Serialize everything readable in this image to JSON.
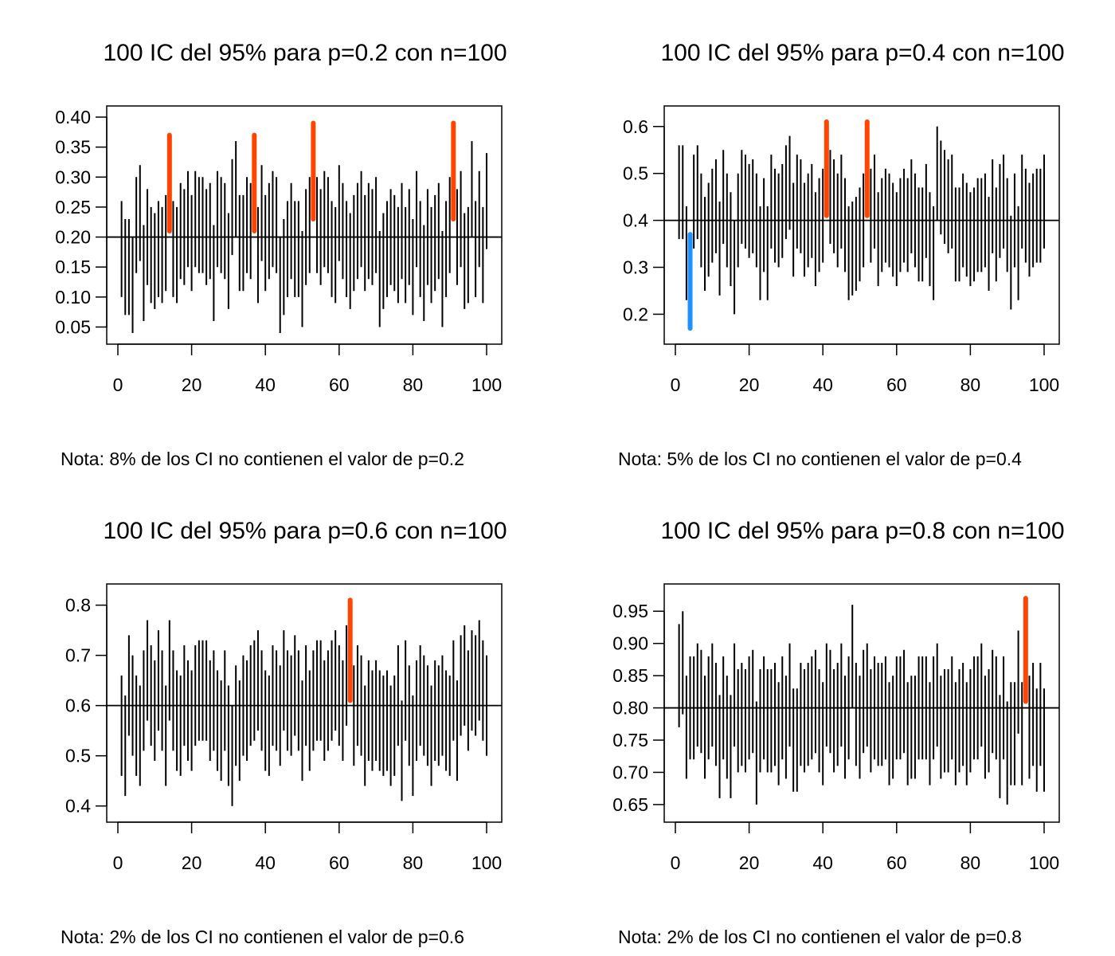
{
  "colors": {
    "interval": "#000000",
    "above": "#FF4500",
    "below": "#1E90FF",
    "reference_line": "#000000",
    "background": "#FFFFFF"
  },
  "chart_data": [
    {
      "type": "interval",
      "title": "100 IC del 95% para p=0.2 con n=100",
      "note": "Nota: 8% de los CI no contienen el valor de p=0.2",
      "p": 0.2,
      "xlim": [
        0,
        100
      ],
      "xticks": [
        0,
        20,
        40,
        60,
        80,
        100
      ],
      "ylim": [
        0.04,
        0.4
      ],
      "yticks": [
        0.05,
        0.1,
        0.15,
        0.2,
        0.25,
        0.3,
        0.35,
        0.4
      ],
      "ytick_labels": [
        "0.05",
        "0.10",
        "0.15",
        "0.20",
        "0.25",
        "0.30",
        "0.35",
        "0.40"
      ],
      "grid": false,
      "lower": [
        0.1,
        0.07,
        0.07,
        0.04,
        0.14,
        0.16,
        0.06,
        0.12,
        0.09,
        0.08,
        0.1,
        0.09,
        0.11,
        0.21,
        0.1,
        0.09,
        0.13,
        0.12,
        0.15,
        0.11,
        0.15,
        0.14,
        0.14,
        0.12,
        0.13,
        0.06,
        0.15,
        0.14,
        0.13,
        0.08,
        0.17,
        0.2,
        0.11,
        0.11,
        0.14,
        0.13,
        0.21,
        0.09,
        0.16,
        0.11,
        0.13,
        0.15,
        0.14,
        0.04,
        0.07,
        0.1,
        0.13,
        0.1,
        0.1,
        0.05,
        0.12,
        0.14,
        0.23,
        0.14,
        0.12,
        0.15,
        0.14,
        0.1,
        0.09,
        0.16,
        0.13,
        0.1,
        0.08,
        0.11,
        0.13,
        0.15,
        0.11,
        0.13,
        0.12,
        0.14,
        0.05,
        0.08,
        0.1,
        0.12,
        0.11,
        0.09,
        0.13,
        0.09,
        0.12,
        0.07,
        0.15,
        0.1,
        0.06,
        0.12,
        0.09,
        0.11,
        0.13,
        0.05,
        0.1,
        0.14,
        0.23,
        0.12,
        0.15,
        0.08,
        0.09,
        0.2,
        0.1,
        0.15,
        0.09,
        0.18
      ],
      "upper": [
        0.26,
        0.23,
        0.23,
        0.2,
        0.3,
        0.32,
        0.22,
        0.28,
        0.25,
        0.24,
        0.26,
        0.25,
        0.27,
        0.37,
        0.26,
        0.25,
        0.29,
        0.28,
        0.31,
        0.27,
        0.31,
        0.3,
        0.3,
        0.28,
        0.29,
        0.22,
        0.31,
        0.3,
        0.29,
        0.24,
        0.33,
        0.36,
        0.27,
        0.27,
        0.3,
        0.29,
        0.37,
        0.25,
        0.32,
        0.27,
        0.29,
        0.31,
        0.3,
        0.2,
        0.23,
        0.26,
        0.29,
        0.26,
        0.26,
        0.21,
        0.28,
        0.3,
        0.39,
        0.3,
        0.28,
        0.31,
        0.3,
        0.26,
        0.25,
        0.32,
        0.29,
        0.26,
        0.24,
        0.27,
        0.29,
        0.31,
        0.27,
        0.29,
        0.28,
        0.3,
        0.21,
        0.24,
        0.26,
        0.28,
        0.27,
        0.25,
        0.29,
        0.25,
        0.28,
        0.23,
        0.31,
        0.26,
        0.22,
        0.28,
        0.25,
        0.27,
        0.29,
        0.21,
        0.26,
        0.3,
        0.39,
        0.28,
        0.31,
        0.24,
        0.25,
        0.36,
        0.26,
        0.31,
        0.25,
        0.34
      ]
    },
    {
      "type": "interval",
      "title": "100 IC del 95% para p=0.4 con n=100",
      "note": "Nota: 5% de los CI no contienen el valor de p=0.4",
      "p": 0.4,
      "xlim": [
        0,
        100
      ],
      "xticks": [
        0,
        20,
        40,
        60,
        80,
        100
      ],
      "ylim": [
        0.16,
        0.62
      ],
      "yticks": [
        0.2,
        0.3,
        0.4,
        0.5,
        0.6
      ],
      "ytick_labels": [
        "0.2",
        "0.3",
        "0.4",
        "0.5",
        "0.6"
      ],
      "grid": false,
      "lower": [
        0.36,
        0.36,
        0.23,
        0.17,
        0.34,
        0.36,
        0.3,
        0.25,
        0.28,
        0.31,
        0.33,
        0.24,
        0.35,
        0.3,
        0.26,
        0.2,
        0.3,
        0.35,
        0.34,
        0.32,
        0.33,
        0.3,
        0.23,
        0.29,
        0.23,
        0.34,
        0.31,
        0.3,
        0.32,
        0.36,
        0.38,
        0.28,
        0.34,
        0.33,
        0.28,
        0.3,
        0.32,
        0.26,
        0.29,
        0.31,
        0.41,
        0.35,
        0.33,
        0.3,
        0.34,
        0.29,
        0.23,
        0.24,
        0.25,
        0.27,
        0.3,
        0.41,
        0.31,
        0.34,
        0.26,
        0.29,
        0.31,
        0.3,
        0.28,
        0.26,
        0.29,
        0.31,
        0.29,
        0.33,
        0.3,
        0.27,
        0.27,
        0.32,
        0.26,
        0.23,
        0.4,
        0.37,
        0.35,
        0.33,
        0.34,
        0.27,
        0.27,
        0.3,
        0.28,
        0.26,
        0.27,
        0.29,
        0.29,
        0.3,
        0.25,
        0.33,
        0.27,
        0.32,
        0.34,
        0.29,
        0.21,
        0.3,
        0.23,
        0.34,
        0.31,
        0.28,
        0.3,
        0.31,
        0.31,
        0.34
      ],
      "upper": [
        0.56,
        0.56,
        0.43,
        0.37,
        0.54,
        0.56,
        0.5,
        0.45,
        0.48,
        0.51,
        0.53,
        0.44,
        0.55,
        0.5,
        0.46,
        0.4,
        0.5,
        0.55,
        0.54,
        0.52,
        0.53,
        0.5,
        0.43,
        0.49,
        0.43,
        0.54,
        0.51,
        0.5,
        0.52,
        0.56,
        0.58,
        0.48,
        0.54,
        0.53,
        0.48,
        0.5,
        0.52,
        0.46,
        0.49,
        0.51,
        0.61,
        0.55,
        0.53,
        0.5,
        0.54,
        0.49,
        0.43,
        0.44,
        0.45,
        0.47,
        0.5,
        0.61,
        0.51,
        0.54,
        0.46,
        0.49,
        0.51,
        0.5,
        0.48,
        0.46,
        0.49,
        0.51,
        0.49,
        0.53,
        0.5,
        0.47,
        0.47,
        0.52,
        0.46,
        0.43,
        0.6,
        0.57,
        0.55,
        0.53,
        0.54,
        0.47,
        0.47,
        0.5,
        0.48,
        0.46,
        0.47,
        0.49,
        0.49,
        0.5,
        0.45,
        0.53,
        0.47,
        0.52,
        0.54,
        0.49,
        0.41,
        0.5,
        0.43,
        0.54,
        0.51,
        0.48,
        0.5,
        0.51,
        0.51,
        0.54
      ]
    },
    {
      "type": "interval",
      "title": "100 IC del 95% para p=0.6 con n=100",
      "note": "Nota: 2% de los CI no contienen el valor de p=0.6",
      "p": 0.6,
      "xlim": [
        0,
        100
      ],
      "xticks": [
        0,
        20,
        40,
        60,
        80,
        100
      ],
      "ylim": [
        0.39,
        0.82
      ],
      "yticks": [
        0.4,
        0.5,
        0.6,
        0.7,
        0.8
      ],
      "ytick_labels": [
        "0.4",
        "0.5",
        "0.6",
        "0.7",
        "0.8"
      ],
      "grid": false,
      "lower": [
        0.46,
        0.42,
        0.54,
        0.5,
        0.46,
        0.44,
        0.51,
        0.57,
        0.52,
        0.49,
        0.55,
        0.51,
        0.44,
        0.57,
        0.51,
        0.47,
        0.46,
        0.52,
        0.49,
        0.47,
        0.52,
        0.53,
        0.53,
        0.53,
        0.49,
        0.51,
        0.47,
        0.45,
        0.51,
        0.44,
        0.4,
        0.48,
        0.45,
        0.5,
        0.49,
        0.52,
        0.53,
        0.55,
        0.51,
        0.47,
        0.46,
        0.52,
        0.51,
        0.48,
        0.55,
        0.51,
        0.5,
        0.54,
        0.51,
        0.45,
        0.52,
        0.47,
        0.51,
        0.53,
        0.53,
        0.49,
        0.51,
        0.53,
        0.55,
        0.52,
        0.49,
        0.56,
        0.61,
        0.48,
        0.52,
        0.5,
        0.44,
        0.49,
        0.47,
        0.49,
        0.47,
        0.46,
        0.47,
        0.44,
        0.46,
        0.52,
        0.41,
        0.53,
        0.48,
        0.42,
        0.49,
        0.52,
        0.5,
        0.48,
        0.44,
        0.49,
        0.48,
        0.5,
        0.47,
        0.46,
        0.53,
        0.45,
        0.54,
        0.56,
        0.51,
        0.55,
        0.54,
        0.57,
        0.53,
        0.5
      ],
      "upper": [
        0.66,
        0.62,
        0.74,
        0.7,
        0.66,
        0.64,
        0.71,
        0.77,
        0.72,
        0.69,
        0.75,
        0.71,
        0.64,
        0.77,
        0.71,
        0.67,
        0.66,
        0.72,
        0.69,
        0.67,
        0.72,
        0.73,
        0.73,
        0.73,
        0.69,
        0.71,
        0.67,
        0.65,
        0.71,
        0.64,
        0.6,
        0.68,
        0.65,
        0.7,
        0.69,
        0.72,
        0.73,
        0.75,
        0.71,
        0.67,
        0.66,
        0.72,
        0.71,
        0.68,
        0.75,
        0.71,
        0.7,
        0.74,
        0.71,
        0.65,
        0.72,
        0.67,
        0.71,
        0.73,
        0.73,
        0.69,
        0.71,
        0.73,
        0.75,
        0.72,
        0.69,
        0.76,
        0.81,
        0.68,
        0.72,
        0.7,
        0.64,
        0.69,
        0.67,
        0.69,
        0.67,
        0.66,
        0.67,
        0.64,
        0.66,
        0.72,
        0.61,
        0.73,
        0.68,
        0.62,
        0.69,
        0.72,
        0.7,
        0.68,
        0.64,
        0.69,
        0.68,
        0.7,
        0.67,
        0.66,
        0.73,
        0.65,
        0.74,
        0.76,
        0.71,
        0.75,
        0.74,
        0.77,
        0.73,
        0.7
      ]
    },
    {
      "type": "interval",
      "title": "100 IC del 95% para p=0.8 con n=100",
      "note": "Nota: 2% de los CI no contienen el valor de p=0.8",
      "p": 0.8,
      "xlim": [
        0,
        100
      ],
      "xticks": [
        0,
        20,
        40,
        60,
        80,
        100
      ],
      "ylim": [
        0.64,
        0.975
      ],
      "yticks": [
        0.65,
        0.7,
        0.75,
        0.8,
        0.85,
        0.9,
        0.95
      ],
      "ytick_labels": [
        "0.65",
        "0.70",
        "0.75",
        "0.80",
        "0.85",
        "0.90",
        "0.95"
      ],
      "grid": false,
      "lower": [
        0.77,
        0.79,
        0.69,
        0.72,
        0.72,
        0.74,
        0.73,
        0.69,
        0.72,
        0.74,
        0.71,
        0.66,
        0.72,
        0.69,
        0.66,
        0.74,
        0.7,
        0.71,
        0.7,
        0.72,
        0.73,
        0.65,
        0.7,
        0.72,
        0.7,
        0.7,
        0.71,
        0.68,
        0.72,
        0.69,
        0.74,
        0.67,
        0.67,
        0.71,
        0.7,
        0.71,
        0.72,
        0.73,
        0.7,
        0.68,
        0.74,
        0.73,
        0.7,
        0.71,
        0.74,
        0.69,
        0.72,
        0.8,
        0.71,
        0.69,
        0.73,
        0.74,
        0.7,
        0.72,
        0.71,
        0.71,
        0.72,
        0.68,
        0.69,
        0.72,
        0.72,
        0.73,
        0.68,
        0.69,
        0.69,
        0.72,
        0.72,
        0.72,
        0.68,
        0.72,
        0.74,
        0.69,
        0.7,
        0.7,
        0.72,
        0.68,
        0.7,
        0.71,
        0.68,
        0.7,
        0.72,
        0.72,
        0.74,
        0.69,
        0.7,
        0.73,
        0.72,
        0.66,
        0.72,
        0.65,
        0.68,
        0.68,
        0.76,
        0.68,
        0.81,
        0.69,
        0.71,
        0.67,
        0.71,
        0.67
      ],
      "upper": [
        0.93,
        0.95,
        0.85,
        0.88,
        0.88,
        0.9,
        0.89,
        0.85,
        0.88,
        0.9,
        0.87,
        0.82,
        0.88,
        0.85,
        0.82,
        0.9,
        0.86,
        0.87,
        0.86,
        0.88,
        0.89,
        0.81,
        0.86,
        0.88,
        0.86,
        0.86,
        0.87,
        0.84,
        0.88,
        0.85,
        0.9,
        0.83,
        0.83,
        0.87,
        0.86,
        0.87,
        0.88,
        0.89,
        0.86,
        0.84,
        0.9,
        0.89,
        0.86,
        0.87,
        0.9,
        0.85,
        0.88,
        0.96,
        0.87,
        0.85,
        0.89,
        0.9,
        0.86,
        0.88,
        0.87,
        0.87,
        0.88,
        0.84,
        0.85,
        0.88,
        0.88,
        0.89,
        0.84,
        0.85,
        0.85,
        0.88,
        0.88,
        0.88,
        0.84,
        0.88,
        0.9,
        0.85,
        0.86,
        0.86,
        0.88,
        0.84,
        0.86,
        0.87,
        0.84,
        0.86,
        0.88,
        0.88,
        0.9,
        0.85,
        0.86,
        0.89,
        0.88,
        0.82,
        0.88,
        0.81,
        0.84,
        0.84,
        0.92,
        0.84,
        0.97,
        0.85,
        0.87,
        0.83,
        0.87,
        0.83
      ]
    }
  ]
}
